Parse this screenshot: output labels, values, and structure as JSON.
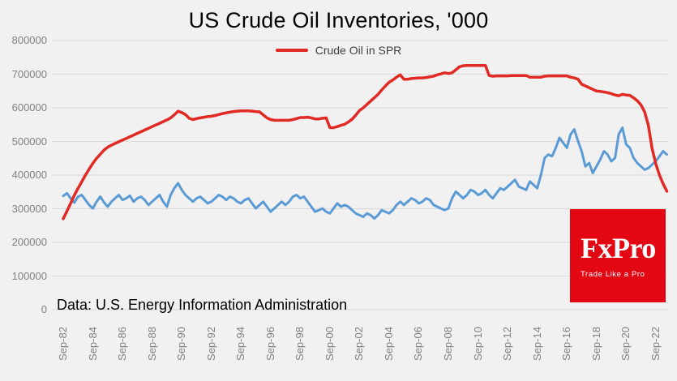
{
  "colors": {
    "background": "#f1f1f1",
    "gridline": "#d9d9d9",
    "axis_text": "#808080",
    "spr_red": "#e02a23",
    "inventory_blue": "#5b9bd5",
    "logo_bg": "#e30613",
    "logo_fg": "#ffffff"
  },
  "header": {
    "title": "US Crude Oil Inventories, '000"
  },
  "legend": {
    "items": [
      {
        "label": "Crude Oil in SPR",
        "color": "#e02a23"
      }
    ]
  },
  "source_note": "Data: U.S. Energy Information Administration",
  "logo": {
    "brand": "FxPro",
    "tagline": "Trade Like a Pro"
  },
  "chart_data": {
    "type": "line",
    "title": "US Crude Oil Inventories, '000",
    "xlabel": "",
    "ylabel": "",
    "ylim": [
      0,
      800000
    ],
    "grid": "horizontal",
    "legend_position": "top",
    "y_ticks": [
      0,
      100000,
      200000,
      300000,
      400000,
      500000,
      600000,
      700000,
      800000
    ],
    "x_tick_labels": [
      "Sep-82",
      "Sep-84",
      "Sep-86",
      "Sep-88",
      "Sep-90",
      "Sep-92",
      "Sep-94",
      "Sep-96",
      "Sep-98",
      "Sep-00",
      "Sep-02",
      "Sep-04",
      "Sep-06",
      "Sep-08",
      "Sep-10",
      "Sep-12",
      "Sep-14",
      "Sep-16",
      "Sep-18",
      "Sep-20",
      "Sep-22"
    ],
    "x_tick_start": 1982.75,
    "x_tick_step": 2,
    "x_start": 1982.75,
    "x_step": 0.25,
    "series": [
      {
        "name": "unlabeled-blue-series",
        "color": "#5b9bd5",
        "width": 3,
        "values": [
          338000,
          346000,
          331000,
          318000,
          336000,
          341000,
          326000,
          311000,
          301000,
          321000,
          336000,
          319000,
          306000,
          321000,
          331000,
          341000,
          326000,
          331000,
          339000,
          321000,
          331000,
          336000,
          326000,
          311000,
          321000,
          331000,
          341000,
          321000,
          306000,
          341000,
          361000,
          376000,
          356000,
          341000,
          331000,
          321000,
          331000,
          336000,
          326000,
          316000,
          321000,
          331000,
          341000,
          336000,
          326000,
          336000,
          331000,
          321000,
          316000,
          326000,
          331000,
          316000,
          301000,
          311000,
          321000,
          306000,
          291000,
          301000,
          311000,
          321000,
          311000,
          321000,
          336000,
          341000,
          331000,
          336000,
          321000,
          306000,
          291000,
          296000,
          301000,
          291000,
          286000,
          301000,
          316000,
          306000,
          311000,
          306000,
          296000,
          286000,
          281000,
          276000,
          286000,
          281000,
          271000,
          281000,
          296000,
          291000,
          286000,
          296000,
          311000,
          321000,
          311000,
          321000,
          331000,
          326000,
          316000,
          321000,
          331000,
          326000,
          311000,
          306000,
          301000,
          296000,
          301000,
          331000,
          351000,
          341000,
          331000,
          341000,
          356000,
          351000,
          341000,
          346000,
          356000,
          341000,
          331000,
          346000,
          361000,
          356000,
          366000,
          376000,
          386000,
          366000,
          361000,
          356000,
          381000,
          371000,
          361000,
          401000,
          451000,
          461000,
          456000,
          481000,
          511000,
          496000,
          481000,
          521000,
          536000,
          501000,
          471000,
          426000,
          436000,
          406000,
          426000,
          446000,
          471000,
          461000,
          441000,
          451000,
          521000,
          541000,
          491000,
          481000,
          451000,
          436000,
          426000,
          416000,
          421000,
          431000,
          441000,
          456000,
          471000,
          461000
        ]
      },
      {
        "name": "Crude Oil in SPR",
        "color": "#e02a23",
        "width": 3.5,
        "values": [
          270000,
          293000,
          316000,
          340000,
          361000,
          380000,
          400000,
          418000,
          435000,
          450000,
          462000,
          474000,
          483000,
          489000,
          494000,
          499000,
          504000,
          509000,
          514000,
          519000,
          524000,
          529000,
          534000,
          539000,
          544000,
          549000,
          554000,
          559000,
          564000,
          570000,
          579000,
          590000,
          586000,
          580000,
          569000,
          565000,
          568000,
          570000,
          572000,
          574000,
          575000,
          577000,
          580000,
          583000,
          585000,
          587000,
          589000,
          590000,
          591000,
          591000,
          591000,
          590000,
          589000,
          588000,
          579000,
          570000,
          565000,
          563000,
          563000,
          563000,
          563000,
          563000,
          565000,
          568000,
          571000,
          571000,
          572000,
          570000,
          567000,
          567000,
          569000,
          570000,
          541000,
          541000,
          544000,
          548000,
          551000,
          558000,
          566000,
          578000,
          592000,
          600000,
          610000,
          620000,
          630000,
          640000,
          653000,
          665000,
          676000,
          683000,
          691000,
          698000,
          685000,
          685000,
          687000,
          688000,
          689000,
          689000,
          690000,
          692000,
          694000,
          698000,
          701000,
          704000,
          702000,
          704000,
          713000,
          722000,
          725000,
          726000,
          726000,
          726000,
          726000,
          726000,
          726000,
          696000,
          694000,
          695000,
          695000,
          695000,
          695000,
          696000,
          696000,
          696000,
          696000,
          696000,
          691000,
          691000,
          691000,
          691000,
          694000,
          695000,
          695000,
          695000,
          695000,
          695000,
          695000,
          691000,
          689000,
          685000,
          670000,
          665000,
          660000,
          655000,
          650000,
          649000,
          647000,
          645000,
          642000,
          638000,
          636000,
          640000,
          638000,
          637000,
          630000,
          621000,
          609000,
          588000,
          548000,
          480000,
          434000,
          400000,
          374000,
          352000
        ]
      }
    ]
  }
}
